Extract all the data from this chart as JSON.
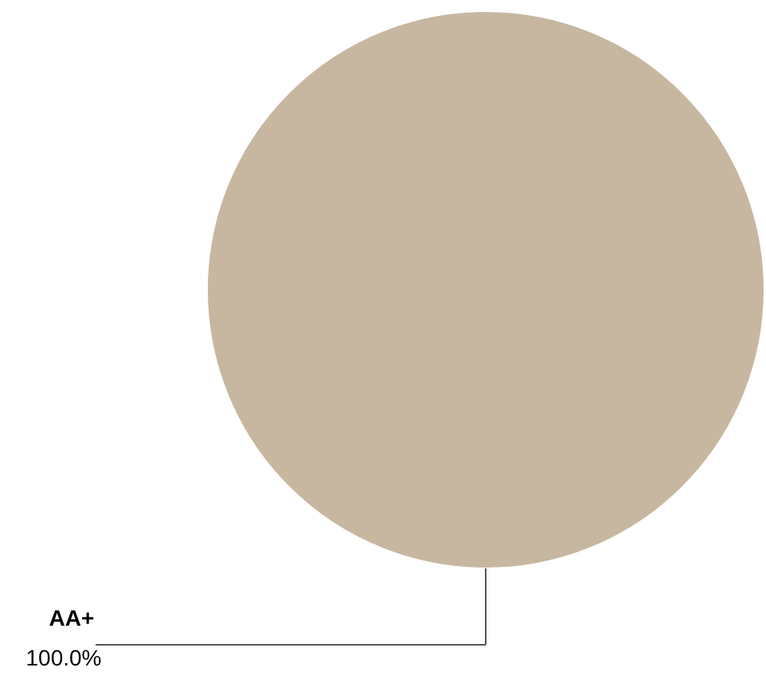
{
  "chart_data": {
    "type": "pie",
    "categories": [
      "AA+"
    ],
    "values": [
      100
    ],
    "colors": [
      "#c7b7a1"
    ],
    "value_labels": [
      "100.0%"
    ]
  }
}
